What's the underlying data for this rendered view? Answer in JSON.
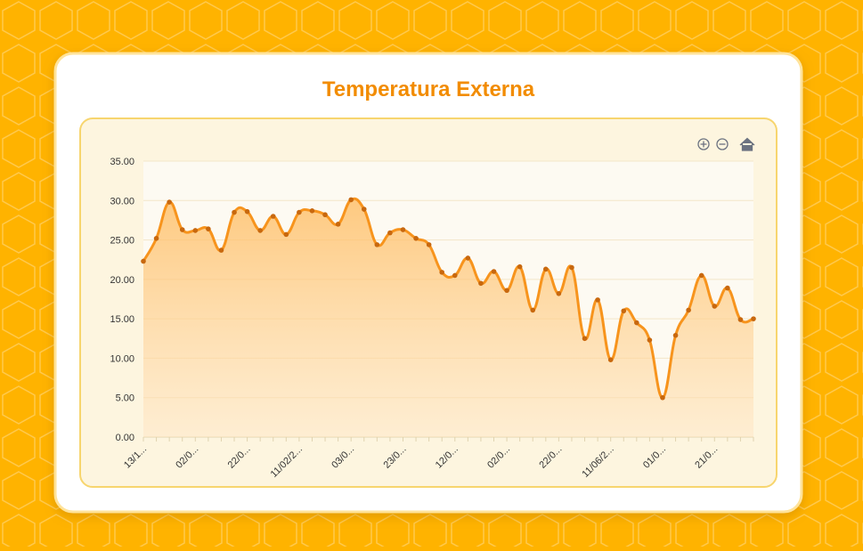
{
  "chart_data": {
    "type": "line",
    "title": "Temperatura Externa",
    "categories": [
      "13/1...",
      null,
      null,
      null,
      "02/0...",
      null,
      null,
      null,
      "22/0...",
      null,
      null,
      null,
      "11/02/2...",
      null,
      null,
      null,
      "03/0...",
      null,
      null,
      null,
      "23/0...",
      null,
      null,
      null,
      "12/0...",
      null,
      null,
      null,
      "02/0...",
      null,
      null,
      null,
      "22/0...",
      null,
      null,
      null,
      "11/06/2...",
      null,
      null,
      null,
      "01/0...",
      null,
      null,
      null,
      "21/0...",
      null,
      null,
      null
    ],
    "series": [
      {
        "color": "#f7941d",
        "values": [
          22.3,
          25.2,
          29.8,
          26.3,
          26.2,
          26.4,
          23.7,
          28.5,
          28.6,
          26.2,
          28.0,
          25.7,
          28.5,
          28.7,
          28.2,
          27.0,
          30.1,
          28.9,
          24.4,
          25.9,
          26.3,
          25.2,
          24.4,
          20.9,
          20.5,
          22.7,
          19.5,
          21.0,
          18.6,
          21.6,
          16.1,
          21.3,
          18.2,
          21.5,
          12.5,
          17.4,
          9.8,
          16.0,
          14.5,
          12.3,
          5.0,
          12.9,
          16.1,
          20.5,
          16.6,
          18.9,
          14.9,
          15.0
        ]
      }
    ],
    "ylim": [
      0,
      35
    ],
    "yticks": [
      {
        "value": 0,
        "label": "0.00"
      },
      {
        "value": 5,
        "label": "5.00"
      },
      {
        "value": 10,
        "label": "10.00"
      },
      {
        "value": 15,
        "label": "15.00"
      },
      {
        "value": 20,
        "label": "20.00"
      },
      {
        "value": 25,
        "label": "25.00"
      },
      {
        "value": 30,
        "label": "30.00"
      },
      {
        "value": 35,
        "label": "35.00"
      }
    ],
    "grid": true
  }
}
